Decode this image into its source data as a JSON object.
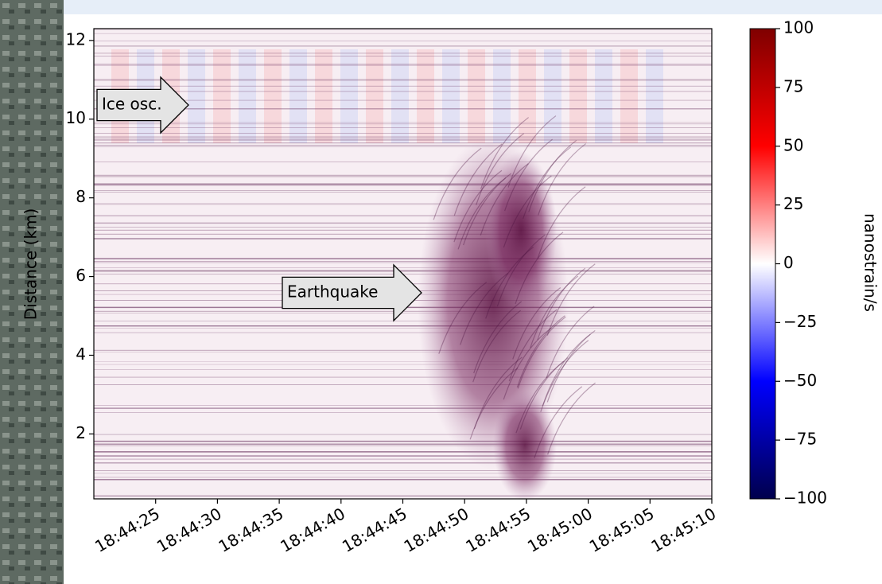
{
  "chart_data": {
    "type": "heatmap",
    "ylabel": "Distance (km)",
    "xlim": [
      "18:44:20",
      "18:45:10"
    ],
    "xticks": [
      "18:44:25",
      "18:44:30",
      "18:44:35",
      "18:44:40",
      "18:44:45",
      "18:44:50",
      "18:44:55",
      "18:45:00",
      "18:45:05",
      "18:45:10"
    ],
    "ylim": [
      0.35,
      12.3
    ],
    "yticks": [
      2,
      4,
      6,
      8,
      10,
      12
    ],
    "annotations": [
      "Ice osc.",
      "Earthquake"
    ],
    "colorbar": {
      "label": "nanostrain/s",
      "lim": [
        -100,
        100
      ],
      "ticks": [
        {
          "value": -100,
          "label": "−100"
        },
        {
          "value": -75,
          "label": "−75"
        },
        {
          "value": -50,
          "label": "−50"
        },
        {
          "value": -25,
          "label": "−25"
        },
        0,
        25,
        50,
        75,
        100
      ],
      "colors": [
        "#00004c",
        "#0000ff",
        "#ffffff",
        "#ff0000",
        "#7f0000"
      ]
    }
  }
}
